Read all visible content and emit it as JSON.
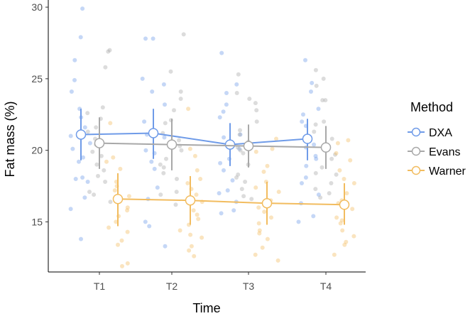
{
  "chart_data": {
    "type": "line",
    "title": "",
    "xlabel": "Time",
    "ylabel": "Fat mass (%)",
    "categories": [
      "T1",
      "T2",
      "T3",
      "T4"
    ],
    "ylim": [
      11.5,
      30.5
    ],
    "yticks": [
      15,
      20,
      25,
      30
    ],
    "grid": false,
    "legend": {
      "title": "Method",
      "position": "right"
    },
    "series": [
      {
        "name": "DXA",
        "color": "#6f9be8",
        "means": [
          21.1,
          21.2,
          20.4,
          20.8
        ],
        "lower": [
          19.3,
          19.4,
          18.9,
          19.3
        ],
        "upper": [
          22.9,
          22.9,
          21.9,
          22.2
        ],
        "points": [
          [
            27.9,
            29.9,
            24.1,
            26.3,
            22.9,
            22.3,
            21.0,
            20.5,
            19.5,
            19.2,
            18.0,
            17.8,
            16.7,
            15.9,
            13.8,
            24.9,
            21.6,
            20.1,
            18.1
          ],
          [
            27.8,
            27.8,
            25.0,
            24.6,
            23.2,
            22.0,
            21.3,
            20.9,
            20.0,
            19.2,
            18.7,
            17.4,
            16.6,
            15.0,
            13.3,
            24.1,
            21.1,
            19.8,
            14.7
          ],
          [
            26.8,
            24.6,
            24.0,
            23.2,
            22.3,
            21.1,
            20.9,
            20.1,
            19.4,
            18.6,
            17.9,
            17.2,
            16.4,
            15.8,
            15.6,
            22.7,
            20.6,
            19.1,
            17.0
          ],
          [
            26.3,
            24.7,
            24.1,
            22.9,
            22.5,
            21.7,
            20.8,
            20.2,
            19.6,
            18.9,
            18.1,
            17.7,
            16.3,
            15.4,
            15.0,
            22.0,
            20.4,
            19.4,
            16.9
          ]
        ]
      },
      {
        "name": "Evans",
        "color": "#a8a8a8",
        "means": [
          20.5,
          20.4,
          20.3,
          20.2
        ],
        "lower": [
          18.7,
          18.6,
          18.8,
          18.7
        ],
        "upper": [
          22.3,
          22.2,
          21.8,
          21.7
        ],
        "points": [
          [
            27.0,
            26.9,
            25.8,
            23.0,
            22.2,
            21.3,
            20.8,
            20.4,
            19.9,
            19.0,
            18.6,
            17.8,
            16.9,
            16.4,
            22.6,
            21.6,
            19.6,
            18.2,
            17.1
          ],
          [
            28.1,
            25.5,
            24.1,
            22.8,
            22.1,
            21.2,
            20.7,
            20.0,
            19.4,
            19.0,
            18.4,
            18.0,
            17.1,
            16.2,
            23.6,
            21.9,
            20.3,
            18.8,
            16.9
          ],
          [
            25.3,
            24.0,
            23.6,
            22.8,
            22.0,
            21.4,
            20.6,
            20.2,
            19.8,
            19.0,
            18.3,
            17.8,
            17.3,
            16.8,
            23.3,
            21.1,
            20.0,
            18.1,
            16.6
          ],
          [
            25.6,
            25.0,
            24.5,
            23.5,
            22.0,
            21.3,
            20.8,
            20.0,
            19.4,
            18.8,
            18.3,
            17.7,
            17.0,
            16.7,
            23.5,
            21.8,
            19.7,
            18.4,
            17.3
          ]
        ]
      },
      {
        "name": "Warner",
        "color": "#f2bc5f",
        "means": [
          16.6,
          16.5,
          16.3,
          16.2
        ],
        "lower": [
          14.7,
          14.8,
          14.8,
          14.8
        ],
        "upper": [
          18.4,
          18.2,
          17.8,
          17.7
        ],
        "points": [
          [
            21.9,
            19.5,
            19.2,
            18.7,
            17.8,
            17.2,
            16.5,
            16.0,
            15.4,
            15.0,
            14.6,
            14.3,
            13.7,
            13.4,
            12.1,
            11.9,
            17.5,
            16.8,
            15.8
          ],
          [
            22.9,
            20.1,
            19.6,
            18.6,
            18.0,
            17.3,
            16.4,
            15.8,
            15.2,
            14.8,
            14.4,
            13.9,
            13.3,
            12.6,
            17.7,
            16.9,
            15.5,
            14.1,
            13.0
          ],
          [
            20.8,
            20.1,
            19.9,
            18.5,
            17.8,
            17.1,
            16.5,
            16.0,
            15.3,
            14.9,
            14.4,
            13.8,
            13.2,
            12.7,
            12.3,
            18.9,
            17.4,
            15.7,
            14.2
          ],
          [
            20.7,
            20.5,
            19.3,
            18.6,
            17.7,
            17.0,
            16.5,
            15.9,
            15.3,
            14.9,
            14.4,
            14.0,
            13.6,
            12.7,
            19.8,
            18.0,
            16.3,
            15.1,
            13.4
          ]
        ]
      }
    ]
  }
}
